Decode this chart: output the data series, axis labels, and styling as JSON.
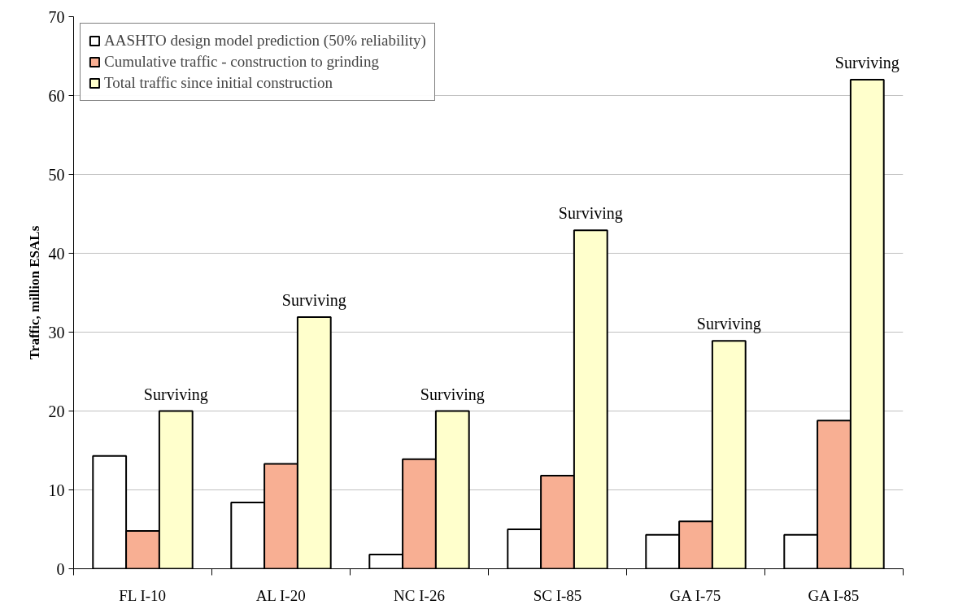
{
  "chart_data": {
    "type": "bar",
    "ylabel": "Traffic, million ESALs",
    "categories": [
      "FL I-10",
      "AL I-20",
      "NC I-26",
      "SC I-85",
      "GA I-75",
      "GA I-85"
    ],
    "series": [
      {
        "name": "AASHTO design model prediction (50% reliability)",
        "color": "#ffffff",
        "values": [
          14.3,
          8.4,
          1.8,
          5.0,
          4.3,
          4.3
        ]
      },
      {
        "name": "Cumulative traffic - construction to grinding",
        "color": "#f8af93",
        "values": [
          4.8,
          13.3,
          13.9,
          11.8,
          6.0,
          18.8
        ]
      },
      {
        "name": "Total traffic since initial construction",
        "color": "#ffffcc",
        "values": [
          20.0,
          31.9,
          20.0,
          42.9,
          28.9,
          62.0
        ]
      }
    ],
    "annotations": [
      "Surviving",
      "Surviving",
      "Surviving",
      "Surviving",
      "Surviving",
      "Surviving"
    ],
    "ylim": [
      0,
      70
    ],
    "yticks": [
      0,
      10,
      20,
      30,
      40,
      50,
      60,
      70
    ],
    "grid": "y",
    "legend": "top left"
  }
}
